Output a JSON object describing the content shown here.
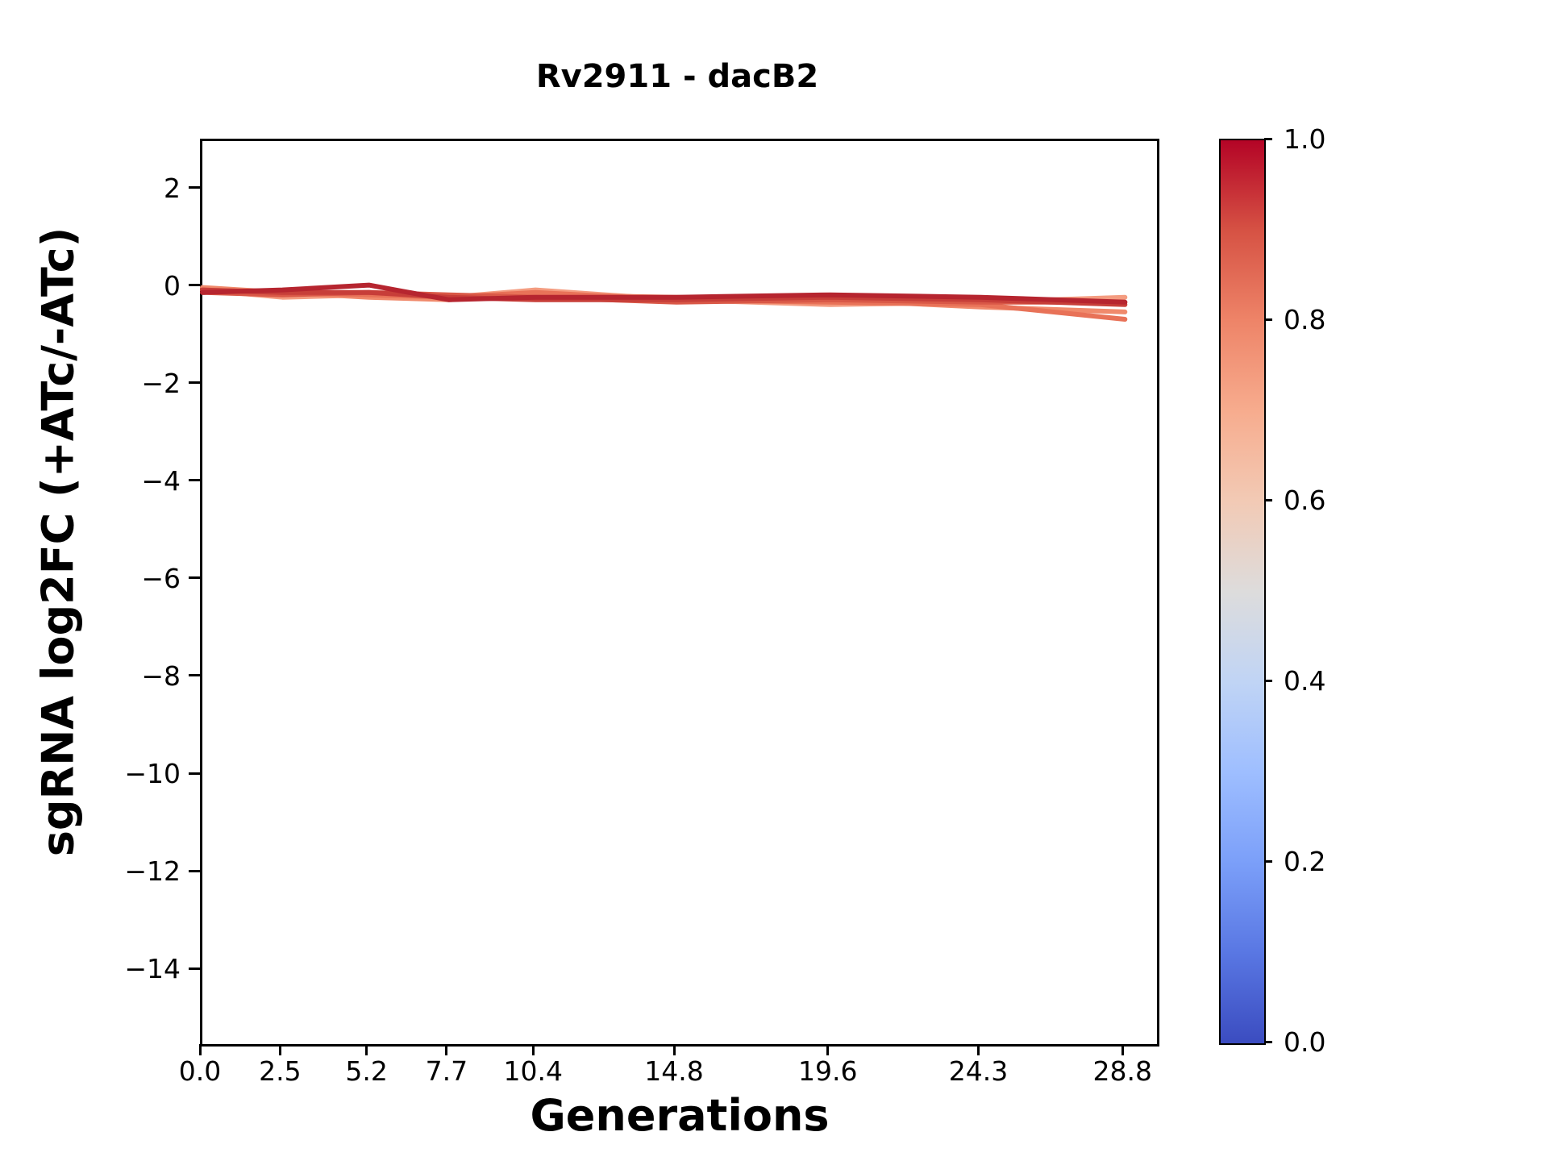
{
  "chart_data": {
    "type": "line",
    "title": "Rv2911 - dacB2",
    "xlabel": "Generations",
    "ylabel": "sgRNA log2FC (+ATc/-ATc)",
    "x": [
      0.0,
      2.5,
      5.2,
      7.7,
      10.4,
      14.8,
      19.6,
      24.3,
      28.8
    ],
    "xlim": [
      0,
      29.8
    ],
    "ylim": [
      -15.5,
      3.0
    ],
    "xticks": [
      {
        "v": 0.0,
        "label": "0.0"
      },
      {
        "v": 2.5,
        "label": "2.5"
      },
      {
        "v": 5.2,
        "label": "5.2"
      },
      {
        "v": 7.7,
        "label": "7.7"
      },
      {
        "v": 10.4,
        "label": "10.4"
      },
      {
        "v": 14.8,
        "label": "14.8"
      },
      {
        "v": 19.6,
        "label": "19.6"
      },
      {
        "v": 24.3,
        "label": "24.3"
      },
      {
        "v": 28.8,
        "label": "28.8"
      }
    ],
    "yticks": [
      {
        "v": 2,
        "label": "2"
      },
      {
        "v": 0,
        "label": "0"
      },
      {
        "v": -2,
        "label": "−2"
      },
      {
        "v": -4,
        "label": "−4"
      },
      {
        "v": -6,
        "label": "−6"
      },
      {
        "v": -8,
        "label": "−8"
      },
      {
        "v": -10,
        "label": "−10"
      },
      {
        "v": -12,
        "label": "−12"
      },
      {
        "v": -14,
        "label": "−14"
      }
    ],
    "grid": false,
    "legend": "none",
    "line_width": 6,
    "series": [
      {
        "name": "line-6",
        "colorbar_value": 0.65,
        "color": "#f49c80",
        "values": [
          -0.05,
          -0.2,
          -0.15,
          -0.2,
          -0.05,
          -0.25,
          -0.35,
          -0.3,
          -0.2
        ]
      },
      {
        "name": "line-5",
        "colorbar_value": 0.7,
        "color": "#f08a6c",
        "values": [
          0.0,
          -0.1,
          -0.2,
          -0.25,
          -0.15,
          -0.2,
          -0.25,
          -0.4,
          -0.5
        ]
      },
      {
        "name": "line-4",
        "colorbar_value": 0.76,
        "color": "#e87258",
        "values": [
          -0.05,
          -0.1,
          -0.15,
          -0.2,
          -0.1,
          -0.25,
          -0.3,
          -0.35,
          -0.65
        ]
      },
      {
        "name": "line-3",
        "colorbar_value": 0.83,
        "color": "#d95847",
        "values": [
          -0.1,
          -0.15,
          -0.1,
          -0.15,
          -0.2,
          -0.3,
          -0.25,
          -0.3,
          -0.3
        ]
      },
      {
        "name": "line-2",
        "colorbar_value": 0.9,
        "color": "#c73e39",
        "values": [
          -0.05,
          -0.1,
          -0.1,
          -0.2,
          -0.25,
          -0.25,
          -0.2,
          -0.25,
          -0.35
        ]
      },
      {
        "name": "line-1",
        "colorbar_value": 0.97,
        "color": "#b6252f",
        "values": [
          -0.1,
          -0.05,
          0.05,
          -0.25,
          -0.2,
          -0.2,
          -0.15,
          -0.2,
          -0.3
        ]
      }
    ],
    "colorbar": {
      "colormap": "coolwarm",
      "range": [
        0.0,
        1.0
      ],
      "ticks": [
        {
          "v": 1.0,
          "label": "1.0"
        },
        {
          "v": 0.8,
          "label": "0.8"
        },
        {
          "v": 0.6,
          "label": "0.6"
        },
        {
          "v": 0.4,
          "label": "0.4"
        },
        {
          "v": 0.2,
          "label": "0.2"
        },
        {
          "v": 0.0,
          "label": "0.0"
        }
      ],
      "gradient_stops": [
        {
          "v": 0.0,
          "color": "#3b4cc0"
        },
        {
          "v": 0.1,
          "color": "#5977e3"
        },
        {
          "v": 0.2,
          "color": "#7b9ff9"
        },
        {
          "v": 0.3,
          "color": "#9ebeff"
        },
        {
          "v": 0.4,
          "color": "#c0d4f5"
        },
        {
          "v": 0.5,
          "color": "#dddcdc"
        },
        {
          "v": 0.6,
          "color": "#f2cab5"
        },
        {
          "v": 0.7,
          "color": "#f7ac8e"
        },
        {
          "v": 0.8,
          "color": "#ee8468"
        },
        {
          "v": 0.9,
          "color": "#d65244"
        },
        {
          "v": 1.0,
          "color": "#b40426"
        }
      ]
    },
    "colors": {
      "background": "#ffffff",
      "axes": "#000000",
      "text": "#000000"
    }
  }
}
